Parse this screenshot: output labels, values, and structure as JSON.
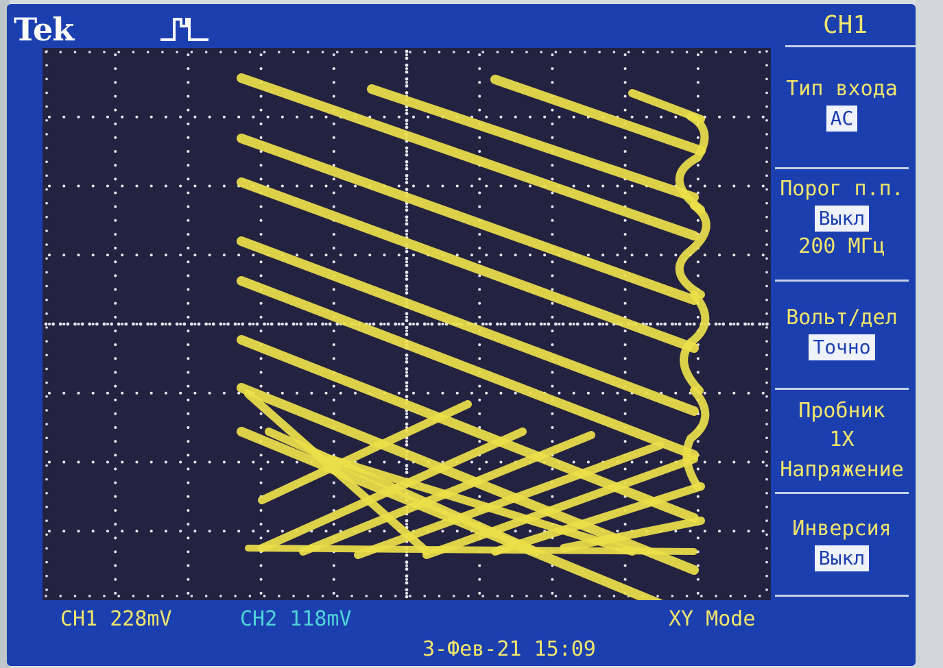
{
  "brand": "Tek",
  "channel_title": "CH1",
  "menu": [
    {
      "label": "Тип входа",
      "value": "AC"
    },
    {
      "label": "Порог п.п.",
      "value": "Выкл",
      "extra": "200 МГц"
    },
    {
      "label": "Вольт/дел",
      "value": "Точно"
    },
    {
      "label": "Пробник",
      "extra": "1X",
      "extra2": "Напряжение"
    },
    {
      "label": "Инверсия",
      "value": "Выкл"
    }
  ],
  "status": {
    "ch1": "CH1  228mV",
    "ch2": "CH2  118mV",
    "mode": "XY Mode"
  },
  "datetime": "3-Фев-21 15:09",
  "colors": {
    "screen_bg": "#1c3fb0",
    "grid_bg": "#242241",
    "trace": "#ece04a",
    "ch1_text": "#f1e66b",
    "ch2_text": "#4fd4d8"
  },
  "icons": {
    "trigger": "pulse-trigger-icon"
  }
}
